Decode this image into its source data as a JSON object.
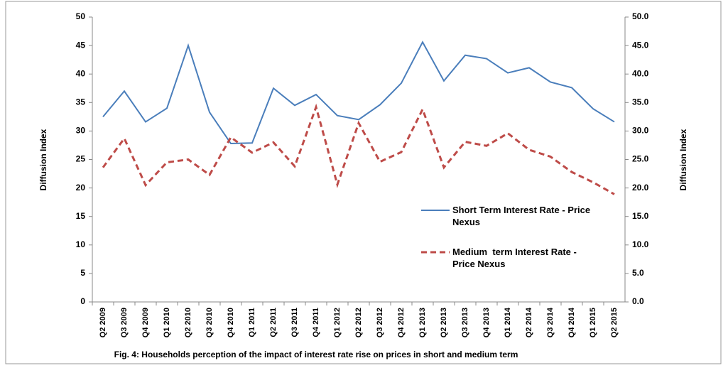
{
  "chart_data": {
    "type": "line",
    "caption": "Fig. 4:  Households  perception of the impact of interest rate rise on prices in short and medium term",
    "y_label": "Diffusion Index",
    "y2_label": "Diffusion Index",
    "categories": [
      "Q2 2009",
      "Q3 2009",
      "Q4 2009",
      "Q1 2010",
      "Q2 2010",
      "Q3 2010",
      "Q4 2010",
      "Q1 2011",
      "Q2 2011",
      "Q3 2011",
      "Q4 2011",
      "Q1 2012",
      "Q2 2012",
      "Q3 2012",
      "Q4 2012",
      "Q1 2013",
      "Q2 2013",
      "Q3 2013",
      "Q4 2013",
      "Q1 2014",
      "Q2 2014",
      "Q3 2014",
      "Q4 2014",
      "Q1 2015",
      "Q2 2015"
    ],
    "series": [
      {
        "name": "Short Term Interest Rate - Price Nexus",
        "color": "#4a7ebb",
        "dash": false,
        "values": [
          32.5,
          37,
          31.6,
          34,
          45,
          33.3,
          27.8,
          27.9,
          37.5,
          34.5,
          36.4,
          32.7,
          32,
          34.6,
          38.4,
          45.6,
          38.8,
          43.3,
          42.7,
          40.2,
          41.1,
          38.6,
          37.6,
          33.9,
          31.6
        ]
      },
      {
        "name": "Medium  term Interest Rate - Price Nexus",
        "color": "#be4b48",
        "dash": true,
        "axis": "y2",
        "values": [
          23.6,
          28.7,
          20.5,
          24.5,
          25,
          22.3,
          28.9,
          26.2,
          28,
          23.8,
          34.2,
          20.6,
          31.4,
          24.6,
          26.3,
          33.8,
          23.6,
          28.1,
          27.4,
          29.6,
          26.7,
          25.5,
          22.8,
          21,
          18.9
        ]
      }
    ],
    "ylim": [
      0,
      50
    ],
    "yticks": [
      0,
      5,
      10,
      15,
      20,
      25,
      30,
      35,
      40,
      45,
      50
    ],
    "y2lim": [
      0,
      50
    ],
    "y2ticks": [
      {
        "value": 0,
        "label": "0.0"
      },
      {
        "value": 5,
        "label": "5.0"
      },
      {
        "value": 10,
        "label": "10.0"
      },
      {
        "value": 15,
        "label": "15.0"
      },
      {
        "value": 20,
        "label": "20.0"
      },
      {
        "value": 25,
        "label": "25.0"
      },
      {
        "value": 30,
        "label": "30.0"
      },
      {
        "value": 35,
        "label": "35.0"
      },
      {
        "value": 40,
        "label": "40.0"
      },
      {
        "value": 45,
        "label": "45.0"
      },
      {
        "value": 50,
        "label": "50.0"
      }
    ],
    "grid": false
  }
}
